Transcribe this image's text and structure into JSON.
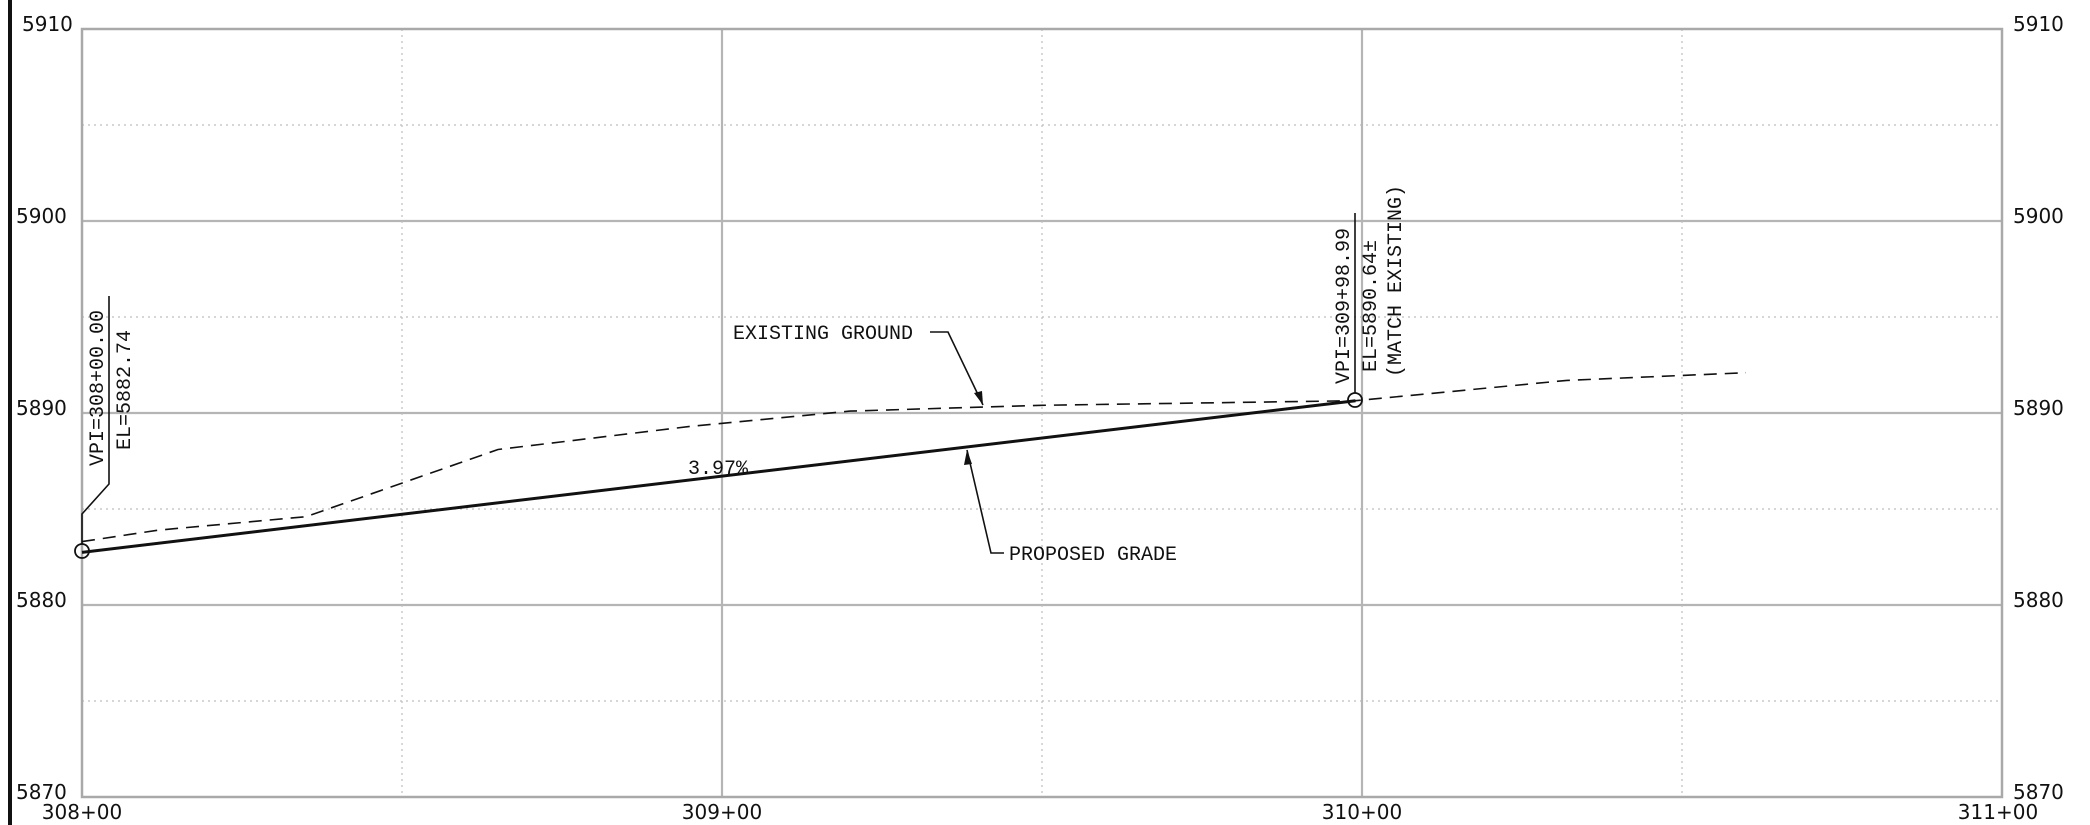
{
  "profile": {
    "left_axis_labels": [
      "5910",
      "5900",
      "5890",
      "5880",
      "5870"
    ],
    "right_axis_labels": [
      "5910",
      "5900",
      "5890",
      "5880",
      "5870"
    ],
    "station_labels": [
      "308+00",
      "309+00",
      "310+00",
      "311+00"
    ],
    "grade_label": "3.97%",
    "existing_ground_label": "EXISTING GROUND",
    "proposed_grade_label": "PROPOSED GRADE",
    "vpi_start": {
      "station_text": "VPI=308+00.00",
      "elevation_text": "EL=5882.74"
    },
    "vpi_end": {
      "station_text": "VPI=309+98.99",
      "elevation_text": "EL=5890.64±",
      "note_text": "(MATCH EXISTING)"
    },
    "colors": {
      "ink": "#111111",
      "grid": "#b5b5b5"
    }
  },
  "chart_data": {
    "type": "line",
    "xlabel": "",
    "ylabel": "",
    "xlim": [
      30800,
      31100
    ],
    "ylim": [
      5870,
      5910
    ],
    "x_ticks": [
      "308+00",
      "309+00",
      "310+00",
      "311+00"
    ],
    "y_ticks": [
      5870,
      5880,
      5890,
      5900,
      5910
    ],
    "grid": true,
    "series": [
      {
        "name": "PROPOSED GRADE",
        "style": "solid",
        "points": [
          [
            30800.0,
            5882.74
          ],
          [
            30998.99,
            5890.64
          ]
        ]
      },
      {
        "name": "EXISTING GROUND",
        "style": "dashed",
        "points": [
          [
            30800,
            5883.3
          ],
          [
            30812,
            5883.9
          ],
          [
            30835,
            5884.6
          ],
          [
            30865,
            5888.1
          ],
          [
            30895,
            5889.3
          ],
          [
            30920,
            5890.1
          ],
          [
            30950,
            5890.4
          ],
          [
            30999,
            5890.64
          ],
          [
            31032,
            5891.7
          ],
          [
            31060,
            5892.1
          ]
        ]
      }
    ],
    "annotations": [
      "3.97%",
      "EXISTING GROUND",
      "PROPOSED GRADE",
      "VPI=308+00.00",
      "EL=5882.74",
      "VPI=309+98.99",
      "EL=5890.64±",
      "(MATCH EXISTING)"
    ]
  }
}
